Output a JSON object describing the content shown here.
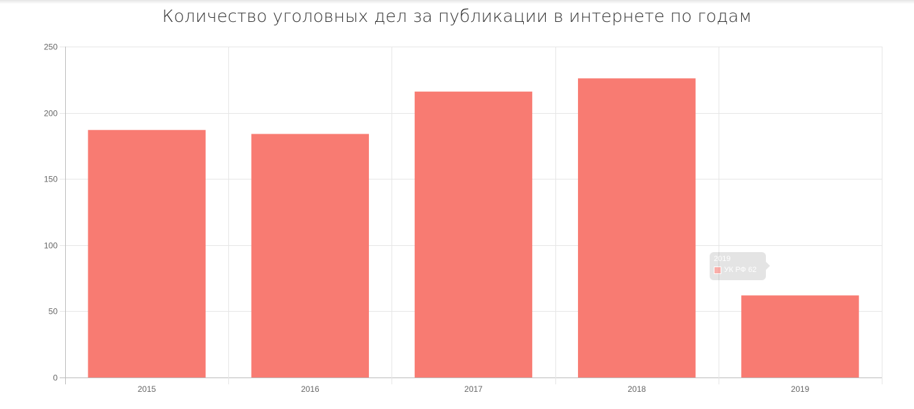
{
  "chart_data": {
    "type": "bar",
    "title": "Количество уголовных дел за публикации в интернете по годам",
    "categories": [
      "2015",
      "2016",
      "2017",
      "2018",
      "2019"
    ],
    "series": [
      {
        "name": "УК РФ",
        "values": [
          187,
          184,
          216,
          226,
          62
        ]
      }
    ],
    "ylim": [
      0,
      250
    ],
    "yticks": [
      0,
      50,
      100,
      150,
      200,
      250
    ],
    "grid": true,
    "bar_color": "#f87b72",
    "tooltip": {
      "category": "2019",
      "series": "УК РФ",
      "value": "62"
    }
  }
}
